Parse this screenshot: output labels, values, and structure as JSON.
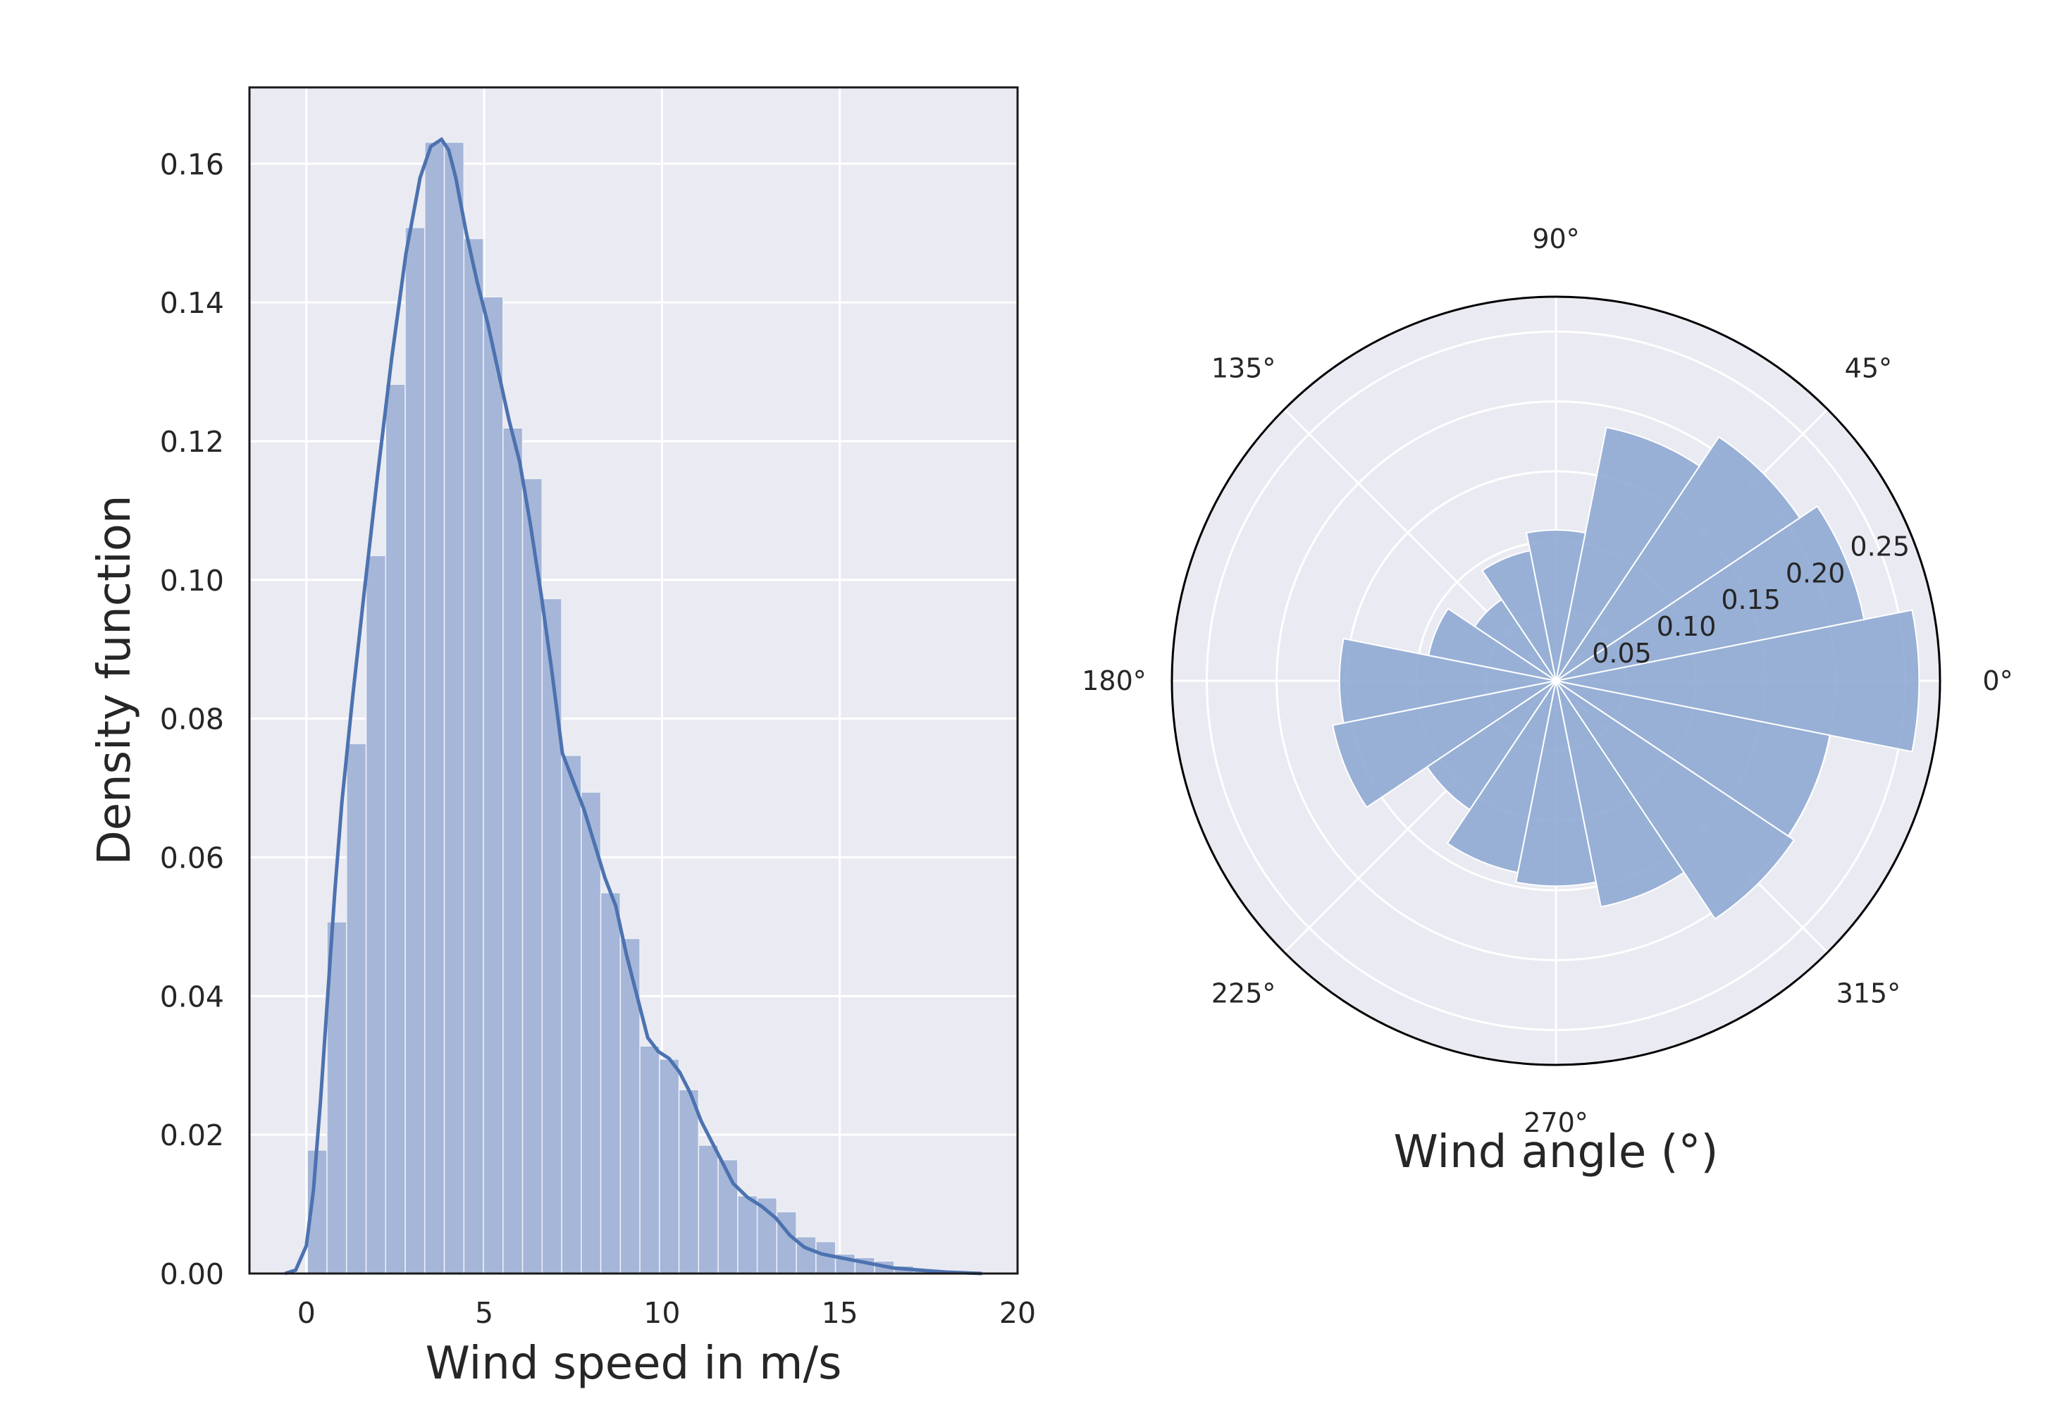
{
  "chart_data": [
    {
      "type": "bar",
      "subtype": "histogram_with_kde",
      "xlabel": "Wind speed in m/s",
      "ylabel": "Density function",
      "xlim": [
        -1.6,
        20
      ],
      "ylim": [
        0,
        0.171
      ],
      "x_ticks": [
        0,
        5,
        10,
        15,
        20
      ],
      "x_tick_labels": [
        "0",
        "5",
        "10",
        "15",
        "20"
      ],
      "y_ticks": [
        0.0,
        0.02,
        0.04,
        0.06,
        0.08,
        0.1,
        0.12,
        0.14,
        0.16
      ],
      "y_tick_labels": [
        "0.00",
        "0.02",
        "0.04",
        "0.06",
        "0.08",
        "0.10",
        "0.12",
        "0.14",
        "0.16"
      ],
      "grid": true,
      "colors": {
        "bars": "#a5b6d8",
        "kde": "#4c72b0",
        "background": "#eaeaf2",
        "grid": "#ffffff"
      },
      "bin_start": 0.03,
      "bin_width": 0.55,
      "values": [
        0.0178,
        0.0507,
        0.0764,
        0.1035,
        0.1282,
        0.1508,
        0.1631,
        0.1631,
        0.1492,
        0.1408,
        0.1219,
        0.1146,
        0.0973,
        0.0747,
        0.0694,
        0.0549,
        0.0483,
        0.0328,
        0.0309,
        0.0265,
        0.0185,
        0.0164,
        0.0112,
        0.0109,
        0.0089,
        0.0053,
        0.0046,
        0.0028,
        0.0023,
        0.0018,
        0.0011,
        0.0007,
        0.0005,
        0.0003
      ],
      "kde": {
        "x": [
          -0.6,
          -0.3,
          0.0,
          0.2,
          0.4,
          0.6,
          0.8,
          1.0,
          1.3,
          1.6,
          2.0,
          2.4,
          2.8,
          3.2,
          3.5,
          3.8,
          4.0,
          4.2,
          4.5,
          4.8,
          5.1,
          5.4,
          5.7,
          6.0,
          6.3,
          6.6,
          6.9,
          7.2,
          7.5,
          7.8,
          8.1,
          8.4,
          8.7,
          9.0,
          9.3,
          9.6,
          9.9,
          10.2,
          10.5,
          10.8,
          11.1,
          11.4,
          11.7,
          12.0,
          12.4,
          12.8,
          13.2,
          13.6,
          14.0,
          14.5,
          15.0,
          15.5,
          16.0,
          16.5,
          17.0,
          17.5,
          18.0,
          18.5,
          19.0
        ],
        "y": [
          0.0,
          0.0005,
          0.004,
          0.012,
          0.025,
          0.04,
          0.055,
          0.068,
          0.083,
          0.097,
          0.115,
          0.132,
          0.147,
          0.158,
          0.1625,
          0.1635,
          0.162,
          0.158,
          0.15,
          0.143,
          0.137,
          0.13,
          0.123,
          0.117,
          0.108,
          0.098,
          0.087,
          0.075,
          0.071,
          0.067,
          0.062,
          0.057,
          0.053,
          0.046,
          0.04,
          0.034,
          0.032,
          0.031,
          0.029,
          0.026,
          0.022,
          0.019,
          0.016,
          0.013,
          0.011,
          0.0097,
          0.008,
          0.0055,
          0.0038,
          0.0028,
          0.0023,
          0.0018,
          0.0013,
          0.0008,
          0.0006,
          0.0004,
          0.0002,
          0.0001,
          0.0
        ]
      }
    },
    {
      "type": "bar",
      "subtype": "polar_histogram",
      "xlabel": "Wind angle (°)",
      "angle_tick_labels": [
        "0°",
        "45°",
        "90°",
        "135°",
        "180°",
        "225°",
        "270°",
        "315°"
      ],
      "radial_ticks": [
        0.05,
        0.1,
        0.15,
        0.2,
        0.25
      ],
      "radial_tick_labels": [
        "0.05",
        "0.10",
        "0.15",
        "0.20",
        "0.25"
      ],
      "rlim": [
        0,
        0.275
      ],
      "grid": true,
      "colors": {
        "bars": "#8faad3",
        "background": "#eaeaf2",
        "grid": "#ffffff",
        "edge": "#000000"
      },
      "bin_width_deg": 22.5,
      "bin_start_deg": [
        -11.25,
        11.25,
        33.75,
        56.25,
        78.75,
        101.25,
        123.75,
        146.25,
        168.75,
        191.25,
        213.75,
        236.25,
        258.75,
        281.25,
        303.75,
        326.25
      ],
      "values": [
        0.26,
        0.225,
        0.21,
        0.185,
        0.108,
        0.095,
        0.07,
        0.093,
        0.155,
        0.163,
        0.111,
        0.14,
        0.147,
        0.165,
        0.205,
        0.2
      ]
    }
  ]
}
